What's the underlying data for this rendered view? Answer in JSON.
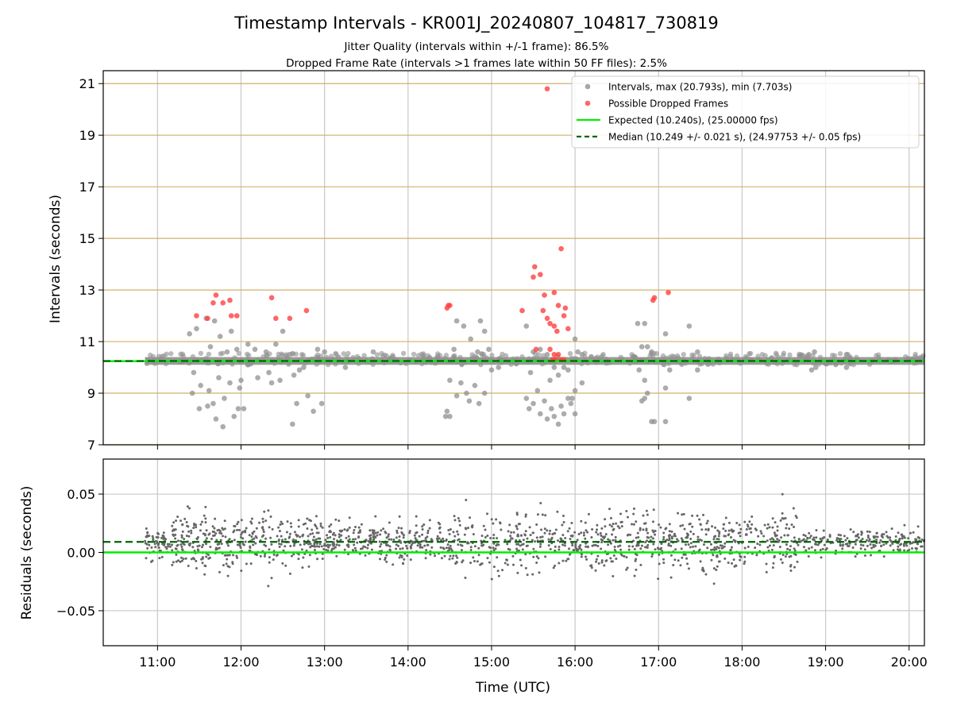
{
  "chart_data": [
    {
      "type": "scatter",
      "panel": "intervals",
      "title": "Timestamp Intervals - KR001J_20240807_104817_730819",
      "subtitle_lines": [
        "Jitter Quality (intervals within +/-1 frame): 86.5%",
        "Dropped Frame Rate (intervals >1 frames late within 50 FF files): 2.5%"
      ],
      "xlabel": "",
      "ylabel": "Intervals (seconds)",
      "xlim": [
        "10:21",
        "20:11"
      ],
      "ylim": [
        7,
        21.5
      ],
      "yticks": [
        7,
        9,
        11,
        13,
        15,
        17,
        19,
        21
      ],
      "ytick_labels": [
        "7",
        "9",
        "11",
        "13",
        "15",
        "17",
        "19",
        "21"
      ],
      "grid": "horizontal tan lines at odd seconds, vertical gray lines at each hour",
      "legend_position": "top-right",
      "legend": [
        "Intervals, max (20.793s), min (7.703s)",
        "Possible Dropped Frames",
        "Expected (10.240s), (25.00000 fps)",
        "Median (10.249 +/- 0.021 s), (24.97753 +/- 0.05 fps)"
      ],
      "colors": {
        "intervals": "#909090",
        "dropped": "#ff4040",
        "expected": "#00ee00",
        "median": "#006400",
        "grid_h": "#d2b06c",
        "grid_v": "#c8c8c8"
      },
      "expected_value": 10.24,
      "median_value": 10.249,
      "series": [
        {
          "name": "Intervals, max (20.793s), min (7.703s)",
          "points": [
            [
              "11:28",
              11.5
            ],
            [
              "11:23",
              11.3
            ],
            [
              "11:35",
              11.9
            ],
            [
              "11:41",
              11.8
            ],
            [
              "11:45",
              11.2
            ],
            [
              "11:38",
              10.8
            ],
            [
              "11:50",
              10.6
            ],
            [
              "11:57",
              10.7
            ],
            [
              "12:05",
              10.9
            ],
            [
              "11:53",
              11.4
            ],
            [
              "11:26",
              9.8
            ],
            [
              "11:31",
              9.3
            ],
            [
              "11:25",
              9.0
            ],
            [
              "11:37",
              9.1
            ],
            [
              "11:44",
              9.6
            ],
            [
              "11:52",
              9.4
            ],
            [
              "12:00",
              9.5
            ],
            [
              "11:59",
              9.2
            ],
            [
              "11:48",
              8.8
            ],
            [
              "11:40",
              8.6
            ],
            [
              "11:36",
              8.5
            ],
            [
              "11:30",
              8.4
            ],
            [
              "11:42",
              8.0
            ],
            [
              "11:47",
              7.7
            ],
            [
              "11:55",
              8.1
            ],
            [
              "12:02",
              8.4
            ],
            [
              "11:58",
              8.4
            ],
            [
              "12:10",
              10.7
            ],
            [
              "12:18",
              10.6
            ],
            [
              "12:25",
              10.9
            ],
            [
              "12:30",
              11.4
            ],
            [
              "12:35",
              10.5
            ],
            [
              "12:12",
              9.6
            ],
            [
              "12:20",
              9.8
            ],
            [
              "12:28",
              9.5
            ],
            [
              "12:38",
              9.7
            ],
            [
              "12:42",
              9.9
            ],
            [
              "12:22",
              9.4
            ],
            [
              "12:48",
              8.9
            ],
            [
              "12:58",
              8.6
            ],
            [
              "12:40",
              8.6
            ],
            [
              "12:52",
              8.3
            ],
            [
              "12:37",
              7.8
            ],
            [
              "12:55",
              10.7
            ],
            [
              "13:00",
              10.6
            ],
            [
              "12:05",
              10.1
            ],
            [
              "12:45",
              10.0
            ],
            [
              "13:35",
              10.6
            ],
            [
              "13:48",
              10.3
            ],
            [
              "14:35",
              11.8
            ],
            [
              "14:40",
              11.6
            ],
            [
              "14:52",
              11.8
            ],
            [
              "14:55",
              11.4
            ],
            [
              "14:45",
              11.1
            ],
            [
              "14:33",
              10.7
            ],
            [
              "14:50",
              10.6
            ],
            [
              "14:58",
              10.7
            ],
            [
              "14:30",
              9.5
            ],
            [
              "14:38",
              9.4
            ],
            [
              "14:42",
              9.0
            ],
            [
              "14:48",
              9.3
            ],
            [
              "14:55",
              9.0
            ],
            [
              "14:44",
              8.7
            ],
            [
              "14:51",
              8.6
            ],
            [
              "14:28",
              8.3
            ],
            [
              "14:27",
              8.1
            ],
            [
              "14:30",
              8.1
            ],
            [
              "14:35",
              8.9
            ],
            [
              "15:00",
              9.9
            ],
            [
              "15:05",
              10.0
            ],
            [
              "15:25",
              11.6
            ],
            [
              "15:30",
              10.6
            ],
            [
              "15:35",
              10.7
            ],
            [
              "15:40",
              10.5
            ],
            [
              "15:28",
              9.8
            ],
            [
              "15:33",
              9.1
            ],
            [
              "15:25",
              8.8
            ],
            [
              "15:30",
              8.6
            ],
            [
              "15:27",
              8.4
            ],
            [
              "15:35",
              8.2
            ],
            [
              "15:40",
              8.0
            ],
            [
              "15:45",
              8.1
            ],
            [
              "15:48",
              7.8
            ],
            [
              "15:52",
              8.2
            ],
            [
              "15:55",
              8.8
            ],
            [
              "15:58",
              8.8
            ],
            [
              "15:43",
              8.4
            ],
            [
              "15:50",
              8.5
            ],
            [
              "15:57",
              8.6
            ],
            [
              "15:38",
              8.7
            ],
            [
              "15:42",
              9.5
            ],
            [
              "15:55",
              9.9
            ],
            [
              "15:52",
              10.0
            ],
            [
              "15:60",
              9.1
            ],
            [
              "16:00",
              11.1
            ],
            [
              "16:02",
              10.6
            ],
            [
              "16:05",
              10.5
            ],
            [
              "15:48",
              9.7
            ],
            [
              "15:45",
              10.0
            ],
            [
              "16:00",
              8.2
            ],
            [
              "16:05",
              9.4
            ],
            [
              "16:45",
              11.7
            ],
            [
              "16:50",
              11.7
            ],
            [
              "16:48",
              10.8
            ],
            [
              "16:52",
              10.8
            ],
            [
              "16:55",
              10.6
            ],
            [
              "16:46",
              9.9
            ],
            [
              "16:50",
              9.5
            ],
            [
              "16:52",
              9.0
            ],
            [
              "16:48",
              8.7
            ],
            [
              "16:50",
              8.8
            ],
            [
              "16:55",
              7.9
            ],
            [
              "16:57",
              7.9
            ],
            [
              "17:05",
              7.9
            ],
            [
              "17:05",
              9.2
            ],
            [
              "17:08",
              9.9
            ],
            [
              "17:15",
              10.2
            ],
            [
              "17:05",
              11.3
            ],
            [
              "17:22",
              11.6
            ],
            [
              "17:22",
              8.8
            ],
            [
              "17:28",
              9.9
            ],
            [
              "17:28",
              10.6
            ],
            [
              "18:20",
              10.3
            ],
            [
              "18:48",
              10.5
            ],
            [
              "18:52",
              10.6
            ],
            [
              "18:50",
              9.9
            ],
            [
              "18:53",
              10.0
            ],
            [
              "19:15",
              10.5
            ],
            [
              "19:15",
              10.0
            ],
            [
              "19:45",
              10.3
            ],
            [
              "20:05",
              10.3
            ],
            [
              "13:08",
              10.2
            ],
            [
              "13:10",
              10.4
            ],
            [
              "13:15",
              10.0
            ]
          ]
        },
        {
          "name": "Possible Dropped Frames",
          "points": [
            [
              "11:28",
              12.0
            ],
            [
              "11:36",
              11.9
            ],
            [
              "11:40",
              12.5
            ],
            [
              "11:42",
              12.8
            ],
            [
              "11:47",
              12.5
            ],
            [
              "11:52",
              12.6
            ],
            [
              "11:53",
              12.0
            ],
            [
              "11:57",
              12.0
            ],
            [
              "12:22",
              12.7
            ],
            [
              "12:25",
              11.9
            ],
            [
              "12:35",
              11.9
            ],
            [
              "12:47",
              12.2
            ],
            [
              "14:28",
              12.3
            ],
            [
              "14:29",
              12.4
            ],
            [
              "14:30",
              12.4
            ],
            [
              "15:22",
              12.2
            ],
            [
              "15:30",
              13.5
            ],
            [
              "15:31",
              13.9
            ],
            [
              "15:35",
              13.6
            ],
            [
              "15:37",
              12.2
            ],
            [
              "15:38",
              12.8
            ],
            [
              "15:40",
              11.9
            ],
            [
              "15:42",
              11.7
            ],
            [
              "15:45",
              12.9
            ],
            [
              "15:45",
              11.6
            ],
            [
              "15:47",
              11.4
            ],
            [
              "15:48",
              12.4
            ],
            [
              "15:50",
              14.6
            ],
            [
              "15:52",
              12.0
            ],
            [
              "15:53",
              12.3
            ],
            [
              "15:55",
              11.5
            ],
            [
              "15:40",
              20.8
            ],
            [
              "15:32",
              10.7
            ],
            [
              "15:42",
              10.7
            ],
            [
              "15:45",
              10.5
            ],
            [
              "15:48",
              10.5
            ],
            [
              "15:50",
              10.3
            ],
            [
              "15:52",
              10.3
            ],
            [
              "15:44",
              10.3
            ],
            [
              "15:46",
              10.3
            ],
            [
              "16:56",
              12.6
            ],
            [
              "16:57",
              12.7
            ],
            [
              "17:07",
              12.9
            ]
          ]
        }
      ],
      "band": {
        "from": "10:51",
        "to": "20:11",
        "low": 10.1,
        "high": 10.4
      }
    },
    {
      "type": "scatter",
      "panel": "residuals",
      "xlabel": "Time (UTC)",
      "ylabel": "Residuals (seconds)",
      "xlim": [
        "10:21",
        "20:11"
      ],
      "ylim": [
        -0.08,
        0.08
      ],
      "xticks": [
        "11:00",
        "12:00",
        "13:00",
        "14:00",
        "15:00",
        "16:00",
        "17:00",
        "18:00",
        "19:00",
        "20:00"
      ],
      "yticks": [
        -0.05,
        0.0,
        0.05
      ],
      "ytick_labels": [
        "−0.05",
        "0.00",
        "0.05"
      ],
      "grid": "gray lines at y ticks and hours",
      "expected_value": 0.0,
      "median_value": 0.009,
      "cloud": {
        "from": "10:51",
        "to": "20:11",
        "count": 1700,
        "spread_fraction": 0.5
      }
    }
  ]
}
